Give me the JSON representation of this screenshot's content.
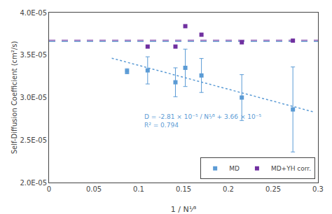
{
  "chart_data": {
    "type": "scatter",
    "xlabel": "1 / N¹⁄³",
    "ylabel": "Self-Diffusion Coefficient (cm²/s)",
    "xlim": [
      0,
      0.3
    ],
    "ylim": [
      2e-05,
      4e-05
    ],
    "xticks": [
      0,
      0.05,
      0.1,
      0.15,
      0.2,
      0.25,
      0.3
    ],
    "yticks": [
      {
        "value": 2e-05,
        "label": "2.0E-05"
      },
      {
        "value": 2.5e-05,
        "label": "2.5E-05"
      },
      {
        "value": 3e-05,
        "label": "3.0E-05"
      },
      {
        "value": 3.5e-05,
        "label": "3.5E-05"
      },
      {
        "value": 4e-05,
        "label": "4.0E-05"
      }
    ],
    "grid": false,
    "legend": "lower right",
    "series": [
      {
        "type": "line",
        "line_style": "dotted",
        "color": "#5b9bd5",
        "x": [
          0.07,
          0.295
        ],
        "values": [
          3.4633e-05,
          2.83105e-05
        ]
      },
      {
        "type": "line",
        "line_style": "dashed",
        "color": "#6699cc",
        "x": [
          0,
          0.3
        ],
        "values": [
          3.66e-05,
          3.66e-05
        ]
      },
      {
        "type": "line",
        "line_style": "dashed",
        "color": "#9966bb",
        "x": [
          0,
          0.3
        ],
        "values": [
          3.675e-05,
          3.675e-05
        ]
      },
      {
        "name": "MD",
        "type": "scatter",
        "marker": "square",
        "color": "#5b9bd5",
        "x": [
          0.087,
          0.11,
          0.141,
          0.152,
          0.17,
          0.215,
          0.272
        ],
        "values": [
          3.31e-05,
          3.32e-05,
          3.18e-05,
          3.35e-05,
          3.26e-05,
          3e-05,
          2.86e-05
        ],
        "yerr": [
          3e-07,
          1.6e-06,
          1.7e-06,
          2.2e-06,
          2e-06,
          2.7e-06,
          5e-06
        ]
      },
      {
        "name": "MD+YH corr.",
        "type": "scatter",
        "marker": "square",
        "color": "#7030a0",
        "x": [
          0.11,
          0.141,
          0.152,
          0.17,
          0.215,
          0.272
        ],
        "values": [
          3.6e-05,
          3.6e-05,
          3.84e-05,
          3.74e-05,
          3.65e-05,
          3.67e-05
        ]
      }
    ],
    "annotations": [
      {
        "text": "D = -2.81 × 10⁻⁵ / N¹⁄³ + 3.66 × 10⁻⁵\nR² = 0.794",
        "x": 0.105,
        "y": 2.62e-05,
        "color": "#5b9bd5"
      }
    ]
  }
}
